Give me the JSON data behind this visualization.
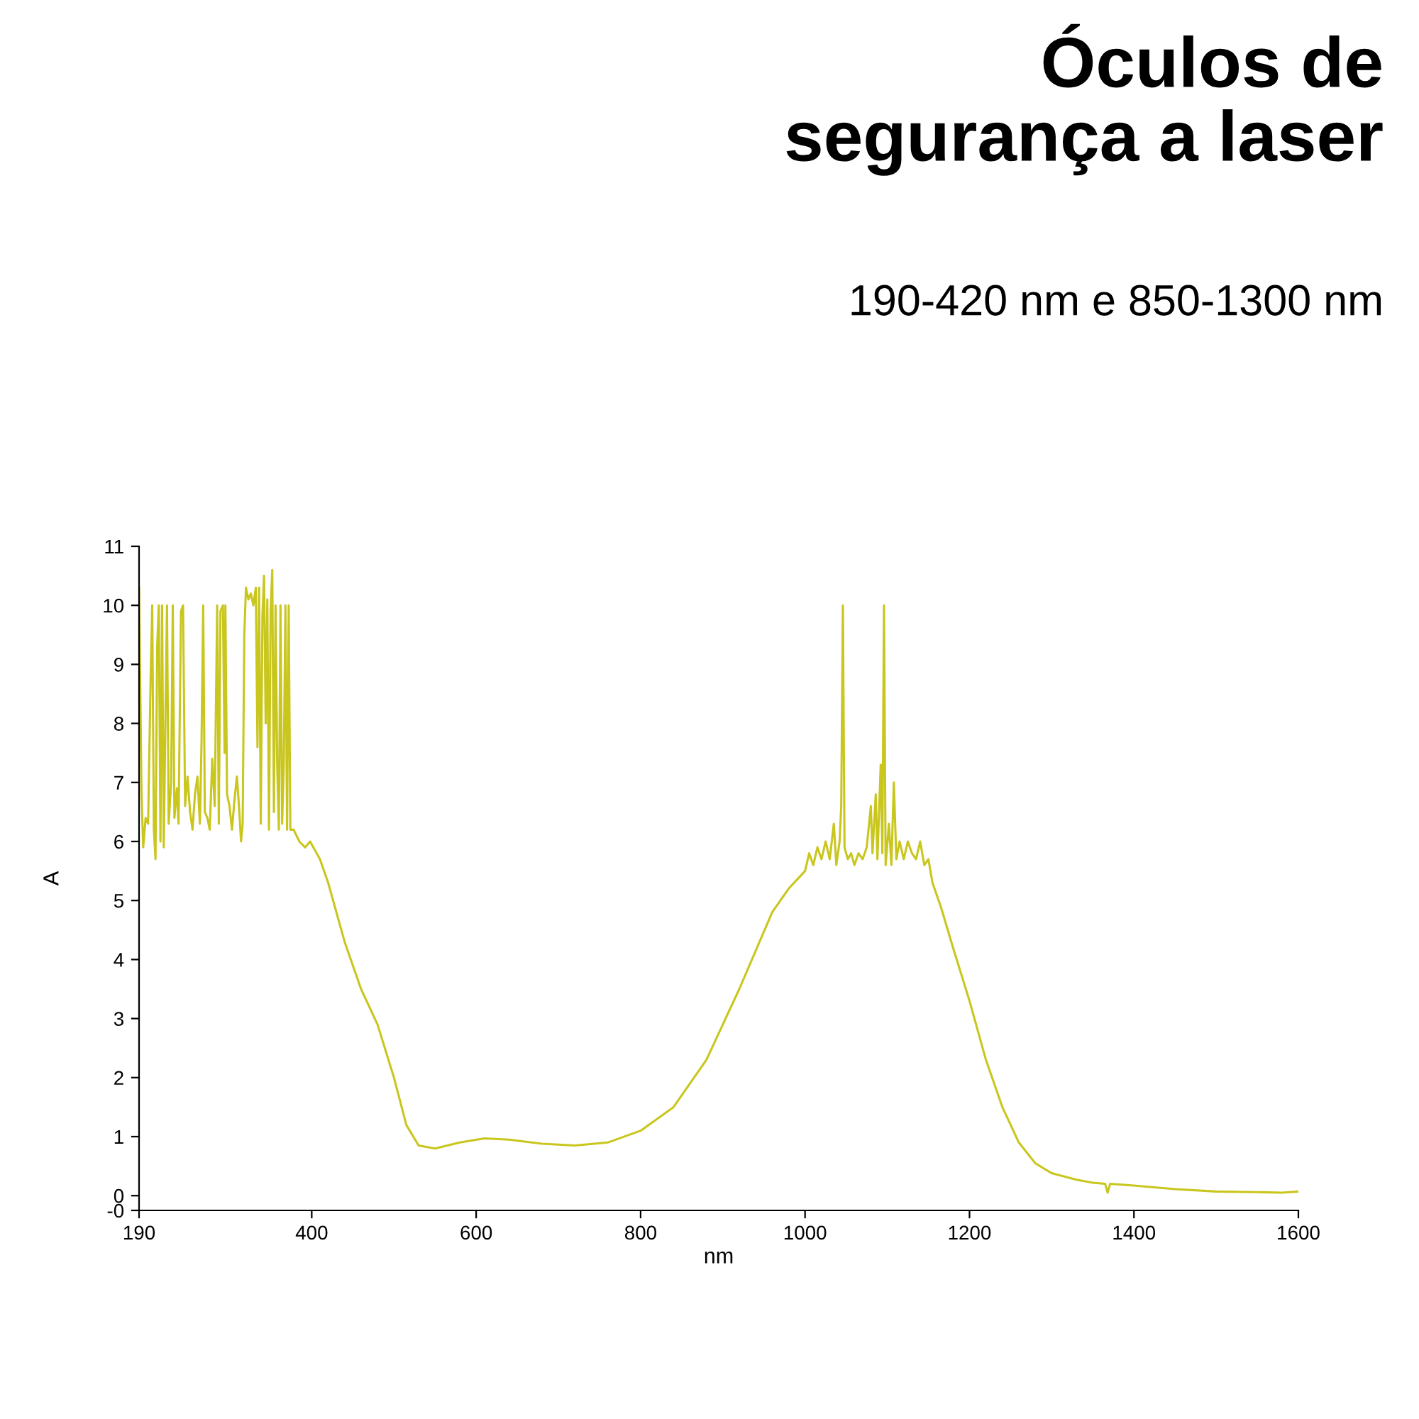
{
  "chart_data": {
    "type": "line",
    "title": "Óculos de\nsegurança a laser",
    "subtitle": "190-420 nm e 850-1300 nm",
    "xlabel": "nm",
    "ylabel": "A",
    "series": [
      {
        "color": "#c9c61e",
        "x": [
          190,
          193,
          195,
          198,
          201,
          204,
          206,
          208,
          210,
          212,
          214,
          216,
          218,
          220,
          222,
          224,
          226,
          229,
          231,
          233,
          236,
          238,
          241,
          243.5,
          246,
          249,
          252,
          255,
          258,
          261,
          264,
          266,
          268,
          270,
          273,
          276,
          279,
          282,
          285,
          287,
          289,
          292,
          294,
          295,
          297,
          300,
          303,
          306,
          309,
          312,
          314,
          316,
          318,
          320,
          323,
          326,
          329,
          332,
          334,
          336,
          338,
          340,
          342,
          344,
          346,
          348,
          350,
          352,
          354,
          356,
          358,
          360,
          362,
          364,
          366,
          368,
          370,
          372,
          374,
          378,
          385,
          392,
          398,
          410,
          420,
          440,
          460,
          480,
          500,
          515,
          530,
          550,
          580,
          610,
          640,
          680,
          720,
          760,
          800,
          840,
          880,
          920,
          960,
          980,
          1000,
          1005,
          1010,
          1015,
          1020,
          1025,
          1030,
          1035,
          1038,
          1042,
          1044,
          1046,
          1048,
          1052,
          1056,
          1060,
          1065,
          1070,
          1075,
          1080,
          1082,
          1086,
          1088,
          1092,
          1094,
          1096,
          1098,
          1102,
          1105,
          1108,
          1111,
          1115,
          1120,
          1125,
          1130,
          1135,
          1140,
          1145,
          1150,
          1155,
          1165,
          1180,
          1200,
          1220,
          1240,
          1260,
          1280,
          1300,
          1330,
          1350,
          1365,
          1368,
          1371,
          1400,
          1450,
          1500,
          1550,
          1580,
          1600
        ],
        "values": [
          10.3,
          6.8,
          5.9,
          6.4,
          6.3,
          8.7,
          10,
          6.2,
          5.7,
          9.3,
          10,
          6.0,
          10,
          5.9,
          8,
          10,
          6.3,
          7.0,
          10,
          6.4,
          6.9,
          6.3,
          9.9,
          10,
          6.6,
          7.1,
          6.5,
          6.2,
          6.8,
          7.1,
          6.3,
          7.7,
          10,
          6.5,
          6.4,
          6.2,
          7.4,
          6.6,
          10,
          6.3,
          9.9,
          10,
          7.5,
          10,
          6.8,
          6.6,
          6.2,
          6.7,
          7.1,
          6.5,
          6.0,
          6.3,
          9.5,
          10.3,
          10.1,
          10.2,
          10.0,
          10.3,
          7.6,
          10.3,
          6.3,
          9.8,
          10.5,
          8.0,
          10.1,
          6.2,
          9.9,
          10.6,
          6.5,
          10,
          7.3,
          6.2,
          10,
          6.3,
          7.3,
          10,
          6.2,
          10,
          6.2,
          6.2,
          6.0,
          5.9,
          6.0,
          5.7,
          5.3,
          4.3,
          3.5,
          2.9,
          2.0,
          1.2,
          0.85,
          0.8,
          0.9,
          0.97,
          0.95,
          0.88,
          0.85,
          0.9,
          1.1,
          1.5,
          2.3,
          3.5,
          4.8,
          5.2,
          5.5,
          5.8,
          5.6,
          5.9,
          5.7,
          6.0,
          5.7,
          6.3,
          5.6,
          6.0,
          6.6,
          10,
          5.9,
          5.7,
          5.8,
          5.6,
          5.8,
          5.7,
          5.9,
          6.6,
          5.8,
          6.8,
          5.7,
          7.3,
          5.8,
          10,
          5.6,
          6.3,
          5.6,
          7.0,
          5.7,
          6.0,
          5.7,
          6.0,
          5.8,
          5.7,
          6.0,
          5.6,
          5.7,
          5.3,
          4.9,
          4.2,
          3.3,
          2.3,
          1.5,
          0.9,
          0.55,
          0.38,
          0.27,
          0.22,
          0.2,
          0.05,
          0.2,
          0.17,
          0.11,
          0.07,
          0.06,
          0.05,
          0.07
        ]
      }
    ],
    "xlim": [
      190,
      1600
    ],
    "xticks": [
      190,
      400,
      600,
      800,
      1000,
      1200,
      1400,
      1600
    ],
    "ylim": [
      -0.25,
      11
    ],
    "yticks": [
      {
        "value": -0.25,
        "label": "-0"
      },
      0,
      1,
      2,
      3,
      4,
      5,
      6,
      7,
      8,
      9,
      10,
      11
    ],
    "grid": false,
    "legend": false,
    "marker": "none",
    "line_style": "solid"
  }
}
